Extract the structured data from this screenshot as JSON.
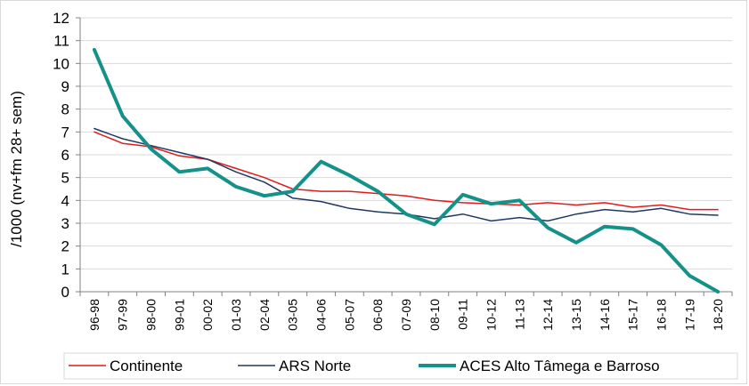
{
  "chart_data": {
    "type": "line",
    "ylabel": "/1000 (nv+fm 28+ sem)",
    "ylim": [
      0,
      12
    ],
    "yticks": [
      0,
      1,
      2,
      3,
      4,
      5,
      6,
      7,
      8,
      9,
      10,
      11,
      12
    ],
    "grid": true,
    "legend_position": "bottom",
    "categories": [
      "96-98",
      "97-99",
      "98-00",
      "99-01",
      "00-02",
      "01-03",
      "02-04",
      "03-05",
      "04-06",
      "05-07",
      "06-08",
      "07-09",
      "08-10",
      "09-11",
      "10-12",
      "11-13",
      "12-14",
      "13-15",
      "14-16",
      "15-17",
      "16-18",
      "17-19",
      "18-20"
    ],
    "series": [
      {
        "name": "Continente",
        "color": "#e31a1c",
        "width": 1.5,
        "values": [
          7.0,
          6.5,
          6.35,
          5.95,
          5.8,
          5.4,
          5.0,
          4.5,
          4.4,
          4.4,
          4.3,
          4.2,
          4.0,
          3.9,
          3.85,
          3.8,
          3.9,
          3.8,
          3.9,
          3.7,
          3.8,
          3.6,
          3.6
        ]
      },
      {
        "name": "ARS Norte",
        "color": "#1f3864",
        "width": 1.5,
        "values": [
          7.15,
          6.7,
          6.4,
          6.1,
          5.8,
          5.25,
          4.8,
          4.1,
          3.95,
          3.65,
          3.5,
          3.4,
          3.2,
          3.4,
          3.1,
          3.25,
          3.1,
          3.4,
          3.6,
          3.5,
          3.65,
          3.4,
          3.35
        ]
      },
      {
        "name": "ACES Alto Tâmega e Barroso",
        "color": "#149189",
        "width": 4,
        "values": [
          10.6,
          7.7,
          6.25,
          5.25,
          5.4,
          4.6,
          4.2,
          4.4,
          5.7,
          5.1,
          4.4,
          3.4,
          2.95,
          4.25,
          3.85,
          4.0,
          2.8,
          2.15,
          2.85,
          2.75,
          2.05,
          0.7,
          0.0
        ]
      }
    ]
  }
}
